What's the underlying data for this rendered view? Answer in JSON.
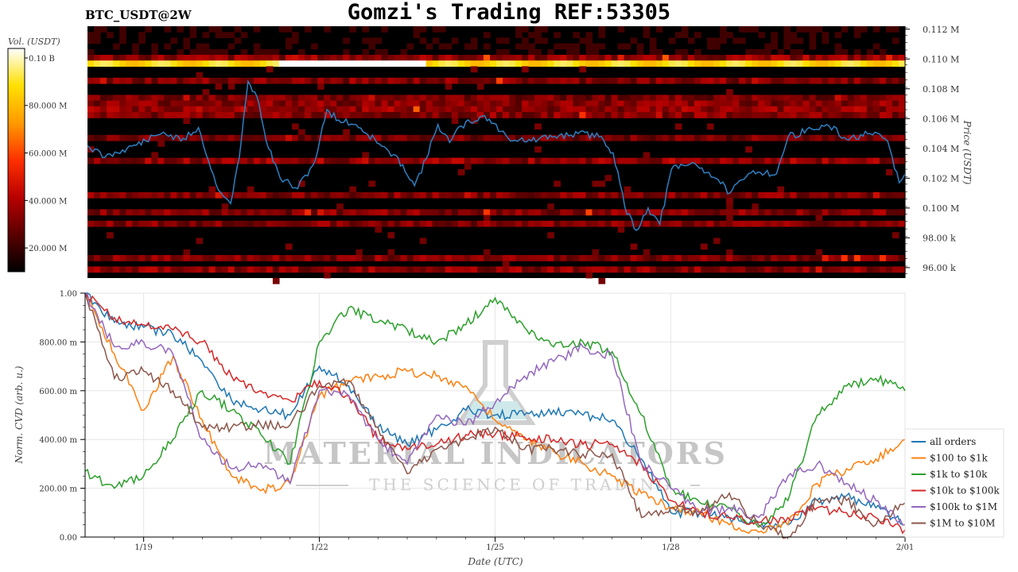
{
  "title": "Gomzi's Trading REF:53305",
  "symbol": "BTC_USDT@2W",
  "heatmap": {
    "colorbar_label": "Vol. (USDT)",
    "colorbar_ticks": [
      "0.10 B",
      "80.000 M",
      "60.000 M",
      "40.000 M",
      "20.000 M"
    ],
    "colorbar_tick_values": [
      100000000,
      80000000,
      60000000,
      40000000,
      20000000
    ],
    "colorbar_range": [
      10000000,
      104000000
    ],
    "colors": [
      "#000000",
      "#5a0000",
      "#b80000",
      "#ff3000",
      "#ff9a00",
      "#ffe000",
      "#ffffff"
    ]
  },
  "chart_data": [
    {
      "type": "line",
      "panel": "price",
      "ylabel": "Price (USDT)",
      "y_ticks": [
        "0.112 M",
        "0.110 M",
        "0.108 M",
        "0.106 M",
        "0.104 M",
        "0.102 M",
        "0.100 M",
        "98.00 k",
        "96.00 k"
      ],
      "y_tick_values": [
        112000,
        110000,
        108000,
        106000,
        104000,
        102000,
        100000,
        98000,
        96000
      ],
      "ylim": [
        95300,
        112200
      ],
      "xlim": [
        0,
        14
      ],
      "series": [
        {
          "color": "#2f7fc1",
          "x": [
            0,
            0.3,
            0.6,
            1.0,
            1.3,
            1.6,
            1.9,
            2.2,
            2.45,
            2.6,
            2.75,
            2.9,
            3.1,
            3.3,
            3.6,
            3.9,
            4.1,
            4.3,
            4.6,
            5.0,
            5.4,
            5.6,
            5.8,
            6.0,
            6.2,
            6.4,
            6.8,
            7.2,
            7.6,
            8.0,
            8.4,
            8.8,
            9.0,
            9.2,
            9.4,
            9.6,
            9.8,
            10.0,
            10.4,
            10.8,
            11.0,
            11.4,
            11.8,
            12.0,
            12.4,
            12.7,
            13.0,
            13.4,
            13.7,
            13.9,
            14.0
          ],
          "y": [
            104200,
            103400,
            103900,
            104500,
            105100,
            104500,
            105400,
            101600,
            100300,
            103400,
            108500,
            107500,
            104000,
            102000,
            101300,
            103200,
            106600,
            105900,
            105600,
            104300,
            102900,
            101500,
            103300,
            105600,
            104400,
            105500,
            106200,
            104700,
            104500,
            104800,
            105000,
            104800,
            103700,
            100100,
            98500,
            100000,
            98900,
            102600,
            103000,
            101900,
            101000,
            102500,
            102300,
            104800,
            105300,
            105500,
            104600,
            105000,
            104500,
            101700,
            102300
          ]
        }
      ]
    },
    {
      "type": "line",
      "panel": "cvd",
      "xlabel": "Date (UTC)",
      "ylabel": "Norm. CVD (arb. u.)",
      "x_tick_labels": [
        "1/19",
        "1/22",
        "1/25",
        "1/28",
        "2/01"
      ],
      "x_tick_values": [
        1,
        4,
        7,
        10,
        14
      ],
      "y_tick_labels": [
        "1.00",
        "800.00 m",
        "600.00 m",
        "400.00 m",
        "200.00 m",
        "0.00"
      ],
      "y_tick_values": [
        1,
        0.8,
        0.6,
        0.4,
        0.2,
        0
      ],
      "xlim": [
        0,
        14
      ],
      "ylim": [
        0,
        1
      ],
      "legend": "right",
      "series": [
        {
          "name": "all orders",
          "color": "#1f77b4",
          "x": [
            0,
            0.5,
            1.0,
            1.5,
            2.0,
            2.5,
            3.0,
            3.5,
            4.0,
            4.5,
            5.0,
            5.5,
            6.0,
            6.5,
            7.0,
            7.5,
            8.0,
            8.5,
            9.0,
            9.5,
            10.0,
            10.5,
            11.0,
            11.5,
            12.0,
            12.5,
            13.0,
            13.5,
            14.0
          ],
          "x_note": "",
          "y": [
            1.0,
            0.88,
            0.86,
            0.83,
            0.72,
            0.56,
            0.52,
            0.5,
            0.7,
            0.62,
            0.45,
            0.38,
            0.44,
            0.52,
            0.5,
            0.5,
            0.52,
            0.5,
            0.48,
            0.32,
            0.1,
            0.1,
            0.08,
            0.06,
            0.05,
            0.15,
            0.17,
            0.12,
            0.05
          ]
        },
        {
          "name": "$100 to $1k",
          "color": "#ff7f0e",
          "x": [
            0,
            0.5,
            1.0,
            1.5,
            2.0,
            2.5,
            3.0,
            3.5,
            4.0,
            4.5,
            5.0,
            5.5,
            6.0,
            6.5,
            7.0,
            7.5,
            8.0,
            8.5,
            9.0,
            9.5,
            10.0,
            10.5,
            11.0,
            11.5,
            12.0,
            12.5,
            13.0,
            13.5,
            14.0
          ],
          "y": [
            1.0,
            0.75,
            0.52,
            0.74,
            0.48,
            0.25,
            0.19,
            0.22,
            0.58,
            0.64,
            0.66,
            0.68,
            0.66,
            0.62,
            0.48,
            0.4,
            0.35,
            0.3,
            0.25,
            0.18,
            0.12,
            0.1,
            0.05,
            0.02,
            0.05,
            0.22,
            0.28,
            0.32,
            0.4
          ]
        },
        {
          "name": "$1k to $10k",
          "color": "#2ca02c",
          "x": [
            0,
            0.5,
            1.0,
            1.5,
            2.0,
            2.5,
            3.0,
            3.5,
            4.0,
            4.5,
            5.0,
            5.5,
            6.0,
            6.5,
            7.0,
            7.5,
            8.0,
            8.5,
            9.0,
            9.5,
            10.0,
            10.5,
            11.0,
            11.5,
            12.0,
            12.5,
            13.0,
            13.5,
            14.0
          ],
          "y": [
            0.27,
            0.2,
            0.25,
            0.4,
            0.6,
            0.52,
            0.42,
            0.3,
            0.8,
            0.94,
            0.88,
            0.85,
            0.8,
            0.87,
            0.98,
            0.86,
            0.78,
            0.8,
            0.76,
            0.5,
            0.2,
            0.14,
            0.12,
            0.04,
            0.15,
            0.5,
            0.62,
            0.65,
            0.6
          ]
        },
        {
          "name": "$10k to $100k",
          "color": "#d62728",
          "x": [
            0,
            0.5,
            1.0,
            1.5,
            2.0,
            2.5,
            3.0,
            3.5,
            4.0,
            4.5,
            5.0,
            5.5,
            6.0,
            6.5,
            7.0,
            7.5,
            8.0,
            8.5,
            9.0,
            9.5,
            10.0,
            10.5,
            11.0,
            11.5,
            12.0,
            12.5,
            13.0,
            13.5,
            14.0
          ],
          "y": [
            1.0,
            0.9,
            0.87,
            0.85,
            0.8,
            0.66,
            0.6,
            0.56,
            0.64,
            0.58,
            0.4,
            0.36,
            0.38,
            0.42,
            0.42,
            0.41,
            0.4,
            0.38,
            0.38,
            0.3,
            0.15,
            0.1,
            0.08,
            0.06,
            0.08,
            0.12,
            0.1,
            0.08,
            0.03
          ]
        },
        {
          "name": "$100k to $1M",
          "color": "#9467bd",
          "x": [
            0,
            0.5,
            1.0,
            1.5,
            2.0,
            2.5,
            3.0,
            3.5,
            4.0,
            4.5,
            5.0,
            5.5,
            6.0,
            6.5,
            7.0,
            7.5,
            8.0,
            8.5,
            9.0,
            9.5,
            10.0,
            10.5,
            11.0,
            11.5,
            12.0,
            12.5,
            13.0,
            13.5,
            14.0
          ],
          "y": [
            1.0,
            0.78,
            0.8,
            0.75,
            0.4,
            0.28,
            0.3,
            0.22,
            0.6,
            0.58,
            0.4,
            0.3,
            0.5,
            0.46,
            0.55,
            0.66,
            0.72,
            0.78,
            0.74,
            0.3,
            0.2,
            0.1,
            0.12,
            0.08,
            0.25,
            0.3,
            0.22,
            0.15,
            0.05
          ]
        },
        {
          "name": "$1M to $10M",
          "color": "#8c564b",
          "x": [
            0,
            0.5,
            1.0,
            1.5,
            2.0,
            2.5,
            3.0,
            3.5,
            4.0,
            4.5,
            5.0,
            5.5,
            6.0,
            6.5,
            7.0,
            7.5,
            8.0,
            8.5,
            9.0,
            9.5,
            10.0,
            10.5,
            11.0,
            11.5,
            12.0,
            12.5,
            13.0,
            13.5,
            14.0
          ],
          "y": [
            1.0,
            0.65,
            0.68,
            0.6,
            0.45,
            0.45,
            0.46,
            0.46,
            0.62,
            0.64,
            0.45,
            0.26,
            0.36,
            0.4,
            0.45,
            0.36,
            0.36,
            0.34,
            0.34,
            0.08,
            0.12,
            0.1,
            0.18,
            0.05,
            0.0,
            0.15,
            0.15,
            0.05,
            0.14
          ]
        }
      ]
    }
  ],
  "watermark": {
    "line1": "MATERIAL INDICATORS",
    "line2": "THE SCIENCE OF TRADING"
  }
}
